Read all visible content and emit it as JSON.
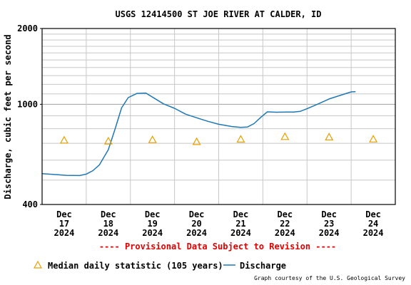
{
  "chart_data": {
    "type": "line",
    "title": "USGS 12414500 ST JOE RIVER AT CALDER, ID",
    "ylabel": "Discharge, cubic feet per second",
    "yscale": "log",
    "ylim": [
      400,
      2000
    ],
    "ytick_labels": [
      "2000",
      "1000",
      "400"
    ],
    "yticks_log_minor": [
      500,
      600,
      700,
      800,
      900,
      1100,
      1200,
      1300,
      1400,
      1500,
      1600,
      1700,
      1800,
      1900
    ],
    "xlim_days": [
      17,
      25
    ],
    "x_ticks": [
      {
        "day": 17.5,
        "label": [
          "Dec",
          "17",
          "2024"
        ]
      },
      {
        "day": 18.5,
        "label": [
          "Dec",
          "18",
          "2024"
        ]
      },
      {
        "day": 19.5,
        "label": [
          "Dec",
          "19",
          "2024"
        ]
      },
      {
        "day": 20.5,
        "label": [
          "Dec",
          "20",
          "2024"
        ]
      },
      {
        "day": 21.5,
        "label": [
          "Dec",
          "21",
          "2024"
        ]
      },
      {
        "day": 22.5,
        "label": [
          "Dec",
          "22",
          "2024"
        ]
      },
      {
        "day": 23.5,
        "label": [
          "Dec",
          "23",
          "2024"
        ]
      },
      {
        "day": 24.5,
        "label": [
          "Dec",
          "24",
          "2024"
        ]
      }
    ],
    "grid": true,
    "series": [
      {
        "name": "Discharge",
        "color": "#1f78b4",
        "style": "line",
        "x": [
          17.0,
          17.25,
          17.55,
          17.85,
          18.0,
          18.15,
          18.3,
          18.5,
          18.65,
          18.8,
          18.95,
          19.15,
          19.35,
          19.55,
          19.75,
          20.0,
          20.25,
          20.5,
          20.75,
          21.0,
          21.3,
          21.5,
          21.65,
          21.8,
          21.95,
          22.1,
          22.3,
          22.55,
          22.7,
          22.85,
          23.0,
          23.25,
          23.5,
          23.75,
          24.0,
          24.1
        ],
        "y": [
          530,
          527,
          522,
          521,
          528,
          545,
          575,
          660,
          795,
          968,
          1063,
          1105,
          1108,
          1055,
          1004,
          964,
          914,
          884,
          856,
          833,
          816,
          810,
          812,
          838,
          887,
          933,
          930,
          931,
          932,
          938,
          960,
          1003,
          1050,
          1085,
          1120,
          1123
        ]
      },
      {
        "name": "Median daily statistic (105 years)",
        "color": "#e8a000",
        "style": "triangle",
        "x": [
          17.5,
          18.5,
          19.5,
          20.5,
          21.5,
          22.5,
          23.5,
          24.5
        ],
        "y": [
          720,
          714,
          723,
          710,
          726,
          744,
          741,
          727
        ]
      }
    ],
    "legend": "bottom-left",
    "annotations": [
      "---- Provisional Data Subject to Revision ----",
      "Graph courtesy of the U.S. Geological Survey"
    ]
  }
}
